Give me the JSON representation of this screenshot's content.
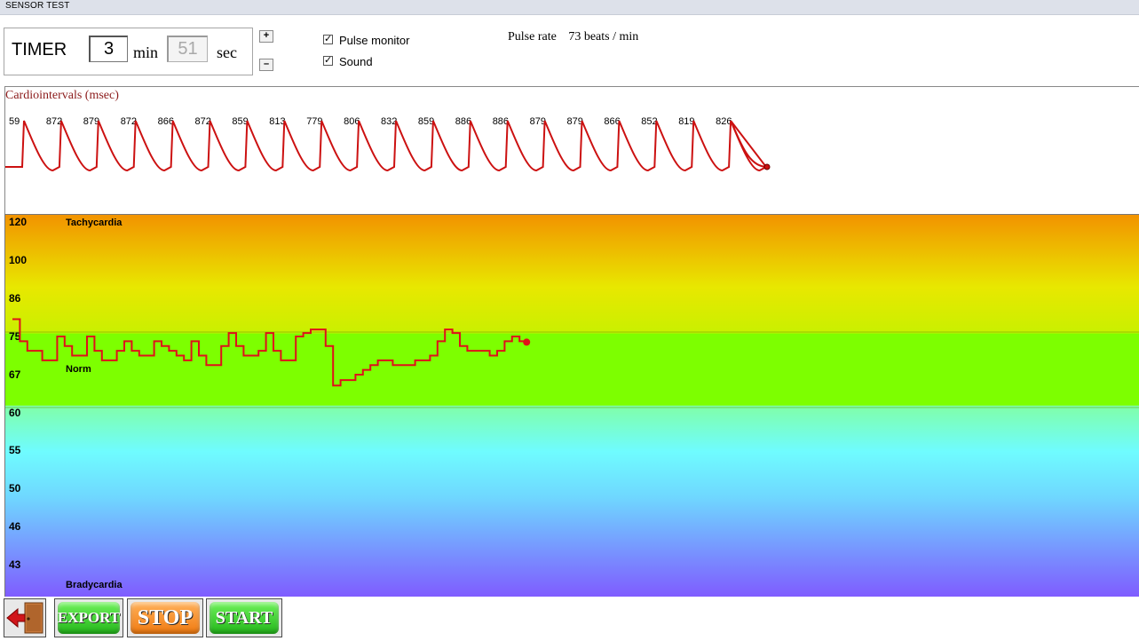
{
  "window": {
    "title": "SENSOR TEST"
  },
  "timer": {
    "label": "TIMER",
    "minutes": "3",
    "min_unit": "min",
    "seconds": "51",
    "sec_unit": "sec"
  },
  "spinner": {
    "plus_label": "+",
    "minus_label": "–"
  },
  "options": {
    "pulse_monitor": {
      "label": "Pulse monitor",
      "checked": true
    },
    "sound": {
      "label": "Sound",
      "checked": true
    }
  },
  "pulse_rate": {
    "label": "Pulse rate",
    "value": "73 beats / min"
  },
  "cardio": {
    "title": "Cardiointervals (msec)",
    "intervals": [
      "59",
      "872",
      "879",
      "872",
      "866",
      "872",
      "859",
      "813",
      "779",
      "806",
      "832",
      "859",
      "886",
      "886",
      "879",
      "879",
      "866",
      "852",
      "819",
      "826"
    ],
    "line_color": "#cc1111"
  },
  "heart_rate_chart": {
    "y_ticks": [
      "120",
      "100",
      "86",
      "75",
      "67",
      "60",
      "55",
      "50",
      "46",
      "43"
    ],
    "zones": {
      "top": "Tachycardia",
      "middle": "Norm",
      "bottom": "Bradycardia"
    },
    "series": [
      80,
      74,
      72,
      72,
      70,
      70,
      75,
      73,
      71,
      71,
      75,
      72,
      70,
      70,
      72,
      74,
      72,
      71,
      71,
      74,
      73,
      72,
      71,
      70,
      74,
      71,
      69,
      69,
      73,
      76,
      73,
      71,
      71,
      72,
      76,
      72,
      70,
      70,
      75,
      76,
      77,
      77,
      73,
      65,
      66,
      66,
      67,
      68,
      69,
      70,
      70,
      69,
      69,
      69,
      70,
      70,
      71,
      74,
      77,
      76,
      73,
      72,
      72,
      72,
      71,
      72,
      74,
      75,
      74
    ],
    "line_color": "#e0101a"
  },
  "buttons": {
    "export": "EXPORT",
    "stop": "STOP",
    "start": "START"
  },
  "colors": {
    "tachycardia": "#f29300",
    "norm": "#7dff00",
    "bradycardia": "#7f5cff",
    "trace": "#e0101a"
  }
}
